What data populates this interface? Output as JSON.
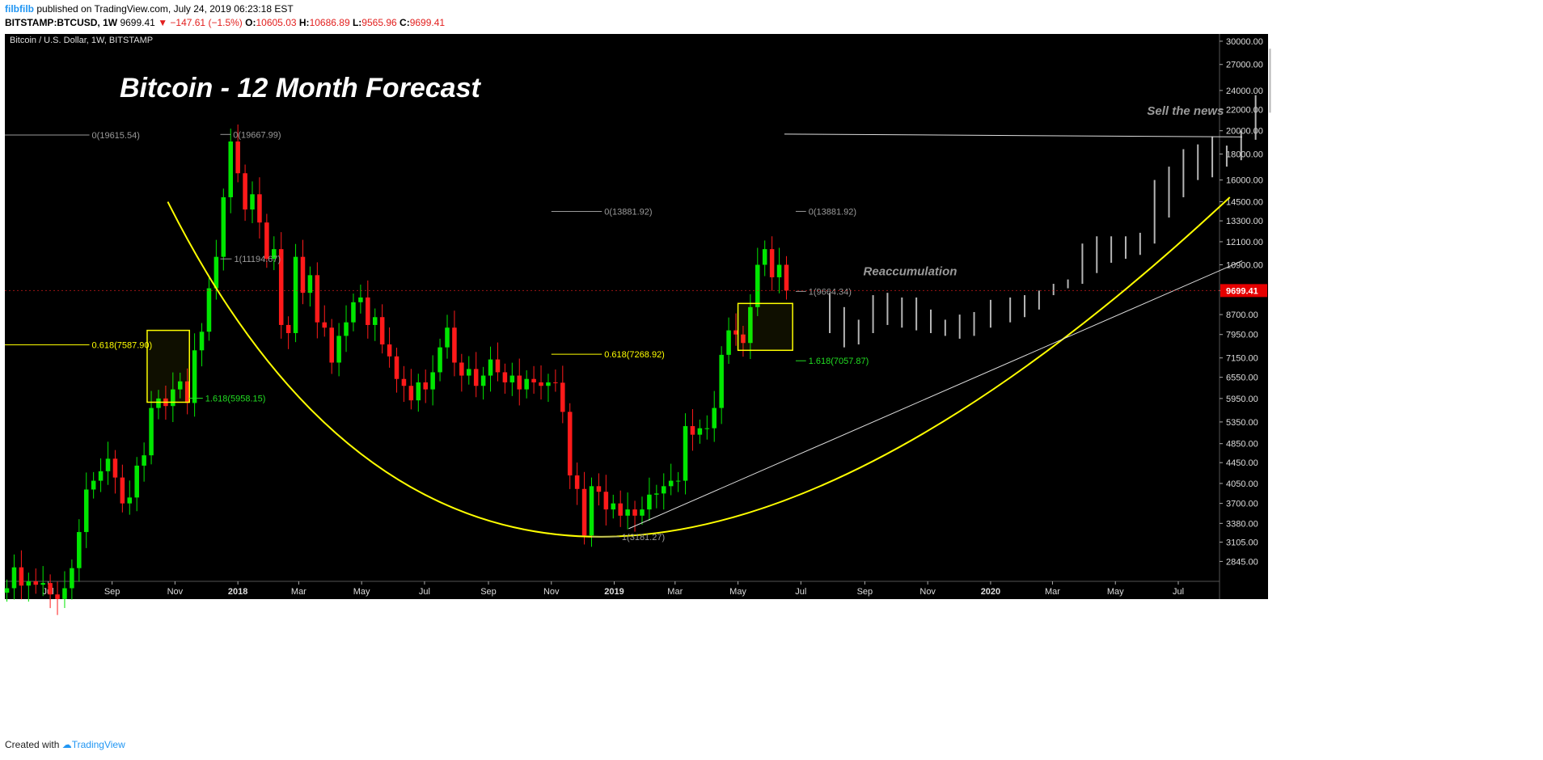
{
  "header": {
    "user": "filbfilb",
    "published": "published on TradingView.com, July 24, 2019 06:23:18 EST",
    "symbol": "BITSTAMP:BTCUSD, 1W",
    "price": "9699.41",
    "change": "▼ −147.61 (−1.5%)",
    "o_label": "O:",
    "o": "10605.03",
    "h_label": "H:",
    "h": "10686.89",
    "l_label": "L:",
    "l": "9565.96",
    "c_label": "C:",
    "c": "9699.41"
  },
  "footer": {
    "created": "Created with",
    "brand": "TradingView"
  },
  "colors": {
    "up": "#00e600",
    "down": "#ff1a1a",
    "projection": "#b5b5b5",
    "fib": "#ffff00",
    "ext": "#22dd22",
    "background": "#000000"
  },
  "chart_data": {
    "type": "candlestick",
    "title": "Bitcoin - 12 Month Forecast",
    "legend": "Bitcoin / U.S. Dollar, 1W, BITSTAMP",
    "y_scale": "log",
    "ylim": [
      2600,
      31000
    ],
    "xlim": [
      "2017-05-20",
      "2020-08-10"
    ],
    "y_ticks": [
      2845,
      3105,
      3380,
      3700,
      4050,
      4450,
      4850,
      5350,
      5950,
      6550,
      7150,
      7950,
      8700,
      9700,
      10900,
      12100,
      13300,
      14500,
      16000,
      18000,
      20000,
      22000,
      24000,
      27000,
      30000
    ],
    "y_tick_labels": [
      "2845.00",
      "3105.00",
      "3380.00",
      "3700.00",
      "4050.00",
      "4450.00",
      "4850.00",
      "5350.00",
      "5950.00",
      "6550.00",
      "7150.00",
      "7950.00",
      "8700.00",
      "9700.00",
      "10900.00",
      "12100.00",
      "13300.00",
      "14500.00",
      "16000.00",
      "18000.00",
      "20000.00",
      "22000.00",
      "24000.00",
      "27000.00",
      "30000.00"
    ],
    "x_ticks": [
      {
        "date": "2017-07-01",
        "label": "Jul",
        "bold": false
      },
      {
        "date": "2017-09-01",
        "label": "Sep",
        "bold": false
      },
      {
        "date": "2017-11-01",
        "label": "Nov",
        "bold": false
      },
      {
        "date": "2018-01-01",
        "label": "2018",
        "bold": true
      },
      {
        "date": "2018-03-01",
        "label": "Mar",
        "bold": false
      },
      {
        "date": "2018-05-01",
        "label": "May",
        "bold": false
      },
      {
        "date": "2018-07-01",
        "label": "Jul",
        "bold": false
      },
      {
        "date": "2018-09-01",
        "label": "Sep",
        "bold": false
      },
      {
        "date": "2018-11-01",
        "label": "Nov",
        "bold": false
      },
      {
        "date": "2019-01-01",
        "label": "2019",
        "bold": true
      },
      {
        "date": "2019-03-01",
        "label": "Mar",
        "bold": false
      },
      {
        "date": "2019-05-01",
        "label": "May",
        "bold": false
      },
      {
        "date": "2019-07-01",
        "label": "Jul",
        "bold": false
      },
      {
        "date": "2019-09-01",
        "label": "Sep",
        "bold": false
      },
      {
        "date": "2019-11-01",
        "label": "Nov",
        "bold": false
      },
      {
        "date": "2020-01-01",
        "label": "2020",
        "bold": true
      },
      {
        "date": "2020-03-01",
        "label": "Mar",
        "bold": false
      },
      {
        "date": "2020-05-01",
        "label": "May",
        "bold": false
      },
      {
        "date": "2020-07-01",
        "label": "Jul",
        "bold": false
      }
    ],
    "last_price": {
      "value": 9699.41,
      "label": "9699.41"
    },
    "candles_close": [
      2520,
      2770,
      2550,
      2600,
      2560,
      2580,
      2450,
      2400,
      2520,
      2760,
      3250,
      3940,
      4100,
      4280,
      4530,
      4160,
      3700,
      3800,
      4390,
      4600,
      5700,
      5950,
      5750,
      6200,
      6430,
      5830,
      7400,
      8050,
      9800,
      11300,
      14800,
      19050,
      16500,
      14000,
      15000,
      13200,
      11200,
      11700,
      8300,
      8000,
      11300,
      9600,
      10400,
      8400,
      8200,
      7000,
      7900,
      8400,
      9200,
      9400,
      8300,
      8600,
      7600,
      7200,
      6500,
      6300,
      5900,
      6400,
      6200,
      6700,
      7500,
      8200,
      7000,
      6600,
      6800,
      6300,
      6600,
      7100,
      6700,
      6400,
      6600,
      6200,
      6500,
      6400,
      6300,
      6400,
      6390,
      5600,
      4200,
      3950,
      3200,
      4000,
      3900,
      3600,
      3700,
      3500,
      3600,
      3500,
      3600,
      3850,
      3870,
      4000,
      4100,
      4100,
      5250,
      5050,
      5200,
      5200,
      5700,
      7250,
      8100,
      7950,
      7650,
      9000,
      10900,
      11700,
      10300,
      10900,
      9699
    ],
    "projection": [
      {
        "date": "2019-07-29",
        "lo": 8000,
        "hi": 9600
      },
      {
        "date": "2019-08-12",
        "lo": 7500,
        "hi": 9000
      },
      {
        "date": "2019-08-26",
        "lo": 7600,
        "hi": 8500
      },
      {
        "date": "2019-09-09",
        "lo": 8000,
        "hi": 9500
      },
      {
        "date": "2019-09-23",
        "lo": 8300,
        "hi": 9600
      },
      {
        "date": "2019-10-07",
        "lo": 8200,
        "hi": 9400
      },
      {
        "date": "2019-10-21",
        "lo": 8100,
        "hi": 9400
      },
      {
        "date": "2019-11-04",
        "lo": 8000,
        "hi": 8900
      },
      {
        "date": "2019-11-18",
        "lo": 7900,
        "hi": 8500
      },
      {
        "date": "2019-12-02",
        "lo": 7800,
        "hi": 8700
      },
      {
        "date": "2019-12-16",
        "lo": 7900,
        "hi": 8800
      },
      {
        "date": "2020-01-01",
        "lo": 8200,
        "hi": 9300
      },
      {
        "date": "2020-01-20",
        "lo": 8400,
        "hi": 9400
      },
      {
        "date": "2020-02-03",
        "lo": 8600,
        "hi": 9500
      },
      {
        "date": "2020-02-17",
        "lo": 8900,
        "hi": 9700
      },
      {
        "date": "2020-03-02",
        "lo": 9500,
        "hi": 10000
      },
      {
        "date": "2020-03-16",
        "lo": 9800,
        "hi": 10200
      },
      {
        "date": "2020-03-30",
        "lo": 10000,
        "hi": 12000
      },
      {
        "date": "2020-04-13",
        "lo": 10500,
        "hi": 12400
      },
      {
        "date": "2020-04-27",
        "lo": 11000,
        "hi": 12400
      },
      {
        "date": "2020-05-11",
        "lo": 11200,
        "hi": 12400
      },
      {
        "date": "2020-05-25",
        "lo": 11400,
        "hi": 12600
      },
      {
        "date": "2020-06-08",
        "lo": 12000,
        "hi": 16000
      },
      {
        "date": "2020-06-22",
        "lo": 13500,
        "hi": 17000
      },
      {
        "date": "2020-07-06",
        "lo": 14800,
        "hi": 18400
      },
      {
        "date": "2020-07-20",
        "lo": 16000,
        "hi": 18800
      },
      {
        "date": "2020-08-03",
        "lo": 16200,
        "hi": 19500
      },
      {
        "date": "2020-08-17",
        "lo": 17000,
        "hi": 18700
      },
      {
        "date": "2020-08-31",
        "lo": 17500,
        "hi": 20000
      },
      {
        "date": "2020-09-14",
        "lo": 19200,
        "hi": 23500
      },
      {
        "date": "2020-09-28",
        "lo": 21700,
        "hi": 29000
      }
    ],
    "fib_labels": [
      {
        "text": "0(19615.54)",
        "price": 19615.54,
        "kind": "gray",
        "x_from": "2017-05-20",
        "x_to": "2017-08-10",
        "label_side": "right"
      },
      {
        "text": "0(19667.99)",
        "price": 19667.99,
        "kind": "gray",
        "x_from": "2017-12-15",
        "x_to": "2017-12-25",
        "label_side": "right"
      },
      {
        "text": "1(11194.67)",
        "price": 11194.67,
        "kind": "gray",
        "x_from": "2017-12-15",
        "x_to": "2017-12-26",
        "label_side": "right"
      },
      {
        "text": "0.618(7587.90)",
        "price": 7587.9,
        "kind": "fib",
        "x_from": "2017-05-20",
        "x_to": "2017-08-10",
        "label_side": "right"
      },
      {
        "text": "1.618(5958.15)",
        "price": 5958.15,
        "kind": "ext",
        "x_from": "2017-11-15",
        "x_to": "2017-11-28",
        "label_side": "right"
      },
      {
        "text": "0(13881.92)",
        "price": 13881.92,
        "kind": "gray",
        "x_from": "2018-11-01",
        "x_to": "2018-12-20",
        "label_side": "right"
      },
      {
        "text": "0.618(7268.92)",
        "price": 7268.92,
        "kind": "fib",
        "x_from": "2018-11-01",
        "x_to": "2018-12-20",
        "label_side": "right"
      },
      {
        "text": "1(3181.27)",
        "price": 3181.27,
        "kind": "gray",
        "x_from": "2018-12-10",
        "x_to": "2019-01-06",
        "label_side": "right"
      },
      {
        "text": "0(13881.92)",
        "price": 13881.92,
        "kind": "gray",
        "x_from": "2019-06-26",
        "x_to": "2019-07-06",
        "label_side": "right"
      },
      {
        "text": "1(9664.34)",
        "price": 9664.34,
        "kind": "gray",
        "x_from": "2019-06-26",
        "x_to": "2019-07-06",
        "label_side": "right"
      },
      {
        "text": "1.618(7057.87)",
        "price": 7057.87,
        "kind": "ext",
        "x_from": "2019-06-26",
        "x_to": "2019-07-06",
        "label_side": "right"
      }
    ],
    "boxes": [
      {
        "d1": "2017-10-05",
        "d2": "2017-11-15",
        "p1": 5850,
        "p2": 8100
      },
      {
        "d1": "2019-05-01",
        "d2": "2019-06-23",
        "p1": 7400,
        "p2": 9150
      }
    ],
    "annotations": [
      {
        "text": "Sell the news",
        "date": "2020-07-08",
        "price": 21500
      },
      {
        "text": "Reaccumulation",
        "date": "2019-10-15",
        "price": 10400
      }
    ],
    "trendlines": [
      {
        "d1": "2019-01-15",
        "p1": 3300,
        "d2": "2020-09-01",
        "p2": 11100,
        "color": "#dddddd"
      },
      {
        "d1": "2019-06-15",
        "p1": 19700,
        "d2": "2020-09-01",
        "p2": 19450,
        "color": "#dddddd"
      }
    ],
    "curve": {
      "d1": "2017-10-25",
      "p1": 14500,
      "d_mid": "2018-12-20",
      "p_mid": 3181,
      "d2": "2020-08-20",
      "p2": 14800,
      "color": "#ffff00"
    }
  }
}
